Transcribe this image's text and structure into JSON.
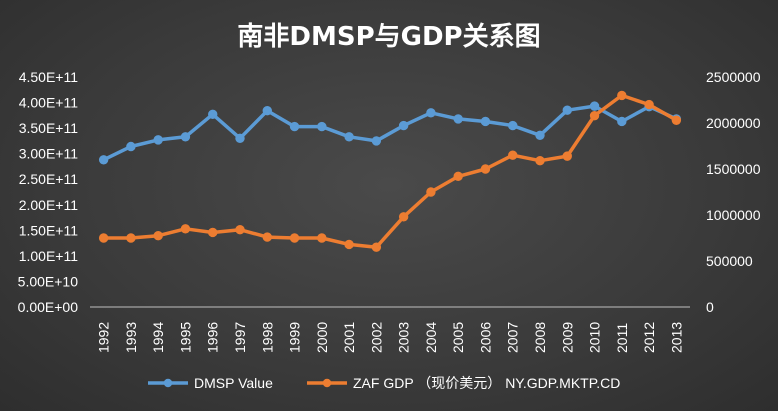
{
  "chart_data": {
    "type": "line",
    "title": "南非DMSP与GDP关系图",
    "categories": [
      "1992",
      "1993",
      "1994",
      "1995",
      "1996",
      "1997",
      "1998",
      "1999",
      "2000",
      "2001",
      "2002",
      "2003",
      "2004",
      "2005",
      "2006",
      "2007",
      "2008",
      "2009",
      "2010",
      "2011",
      "2012",
      "2013"
    ],
    "series": [
      {
        "name": "DMSP Value",
        "axis": "left",
        "color": "#5B9BD5",
        "values": [
          288000000000.0,
          314000000000.0,
          327000000000.0,
          333000000000.0,
          377000000000.0,
          330000000000.0,
          384000000000.0,
          353000000000.0,
          353000000000.0,
          333000000000.0,
          325000000000.0,
          355000000000.0,
          380000000000.0,
          368000000000.0,
          363000000000.0,
          355000000000.0,
          336000000000.0,
          385000000000.0,
          393000000000.0,
          363000000000.0,
          392000000000.0,
          368000000000.0
        ]
      },
      {
        "name": "ZAF GDP （现价美元） NY.GDP.MKTP.CD",
        "axis": "right",
        "color": "#ED7D31",
        "values": [
          750000,
          750000,
          775000,
          850000,
          810000,
          840000,
          760000,
          750000,
          750000,
          680000,
          650000,
          980000,
          1250000,
          1420000,
          1500000,
          1650000,
          1590000,
          1640000,
          2080000,
          2300000,
          2200000,
          2030000
        ]
      }
    ],
    "y_left": {
      "ylim": [
        0,
        450000000000.0
      ],
      "ticks": [
        "0.00E+00",
        "5.00E+10",
        "1.00E+11",
        "1.50E+11",
        "2.00E+11",
        "2.50E+11",
        "3.00E+11",
        "3.50E+11",
        "4.00E+11",
        "4.50E+11"
      ]
    },
    "y_right": {
      "ylim": [
        0,
        2500000
      ],
      "ticks": [
        "0",
        "500000",
        "1000000",
        "1500000",
        "2000000",
        "2500000"
      ]
    },
    "grid": false,
    "legend_position": "bottom"
  }
}
